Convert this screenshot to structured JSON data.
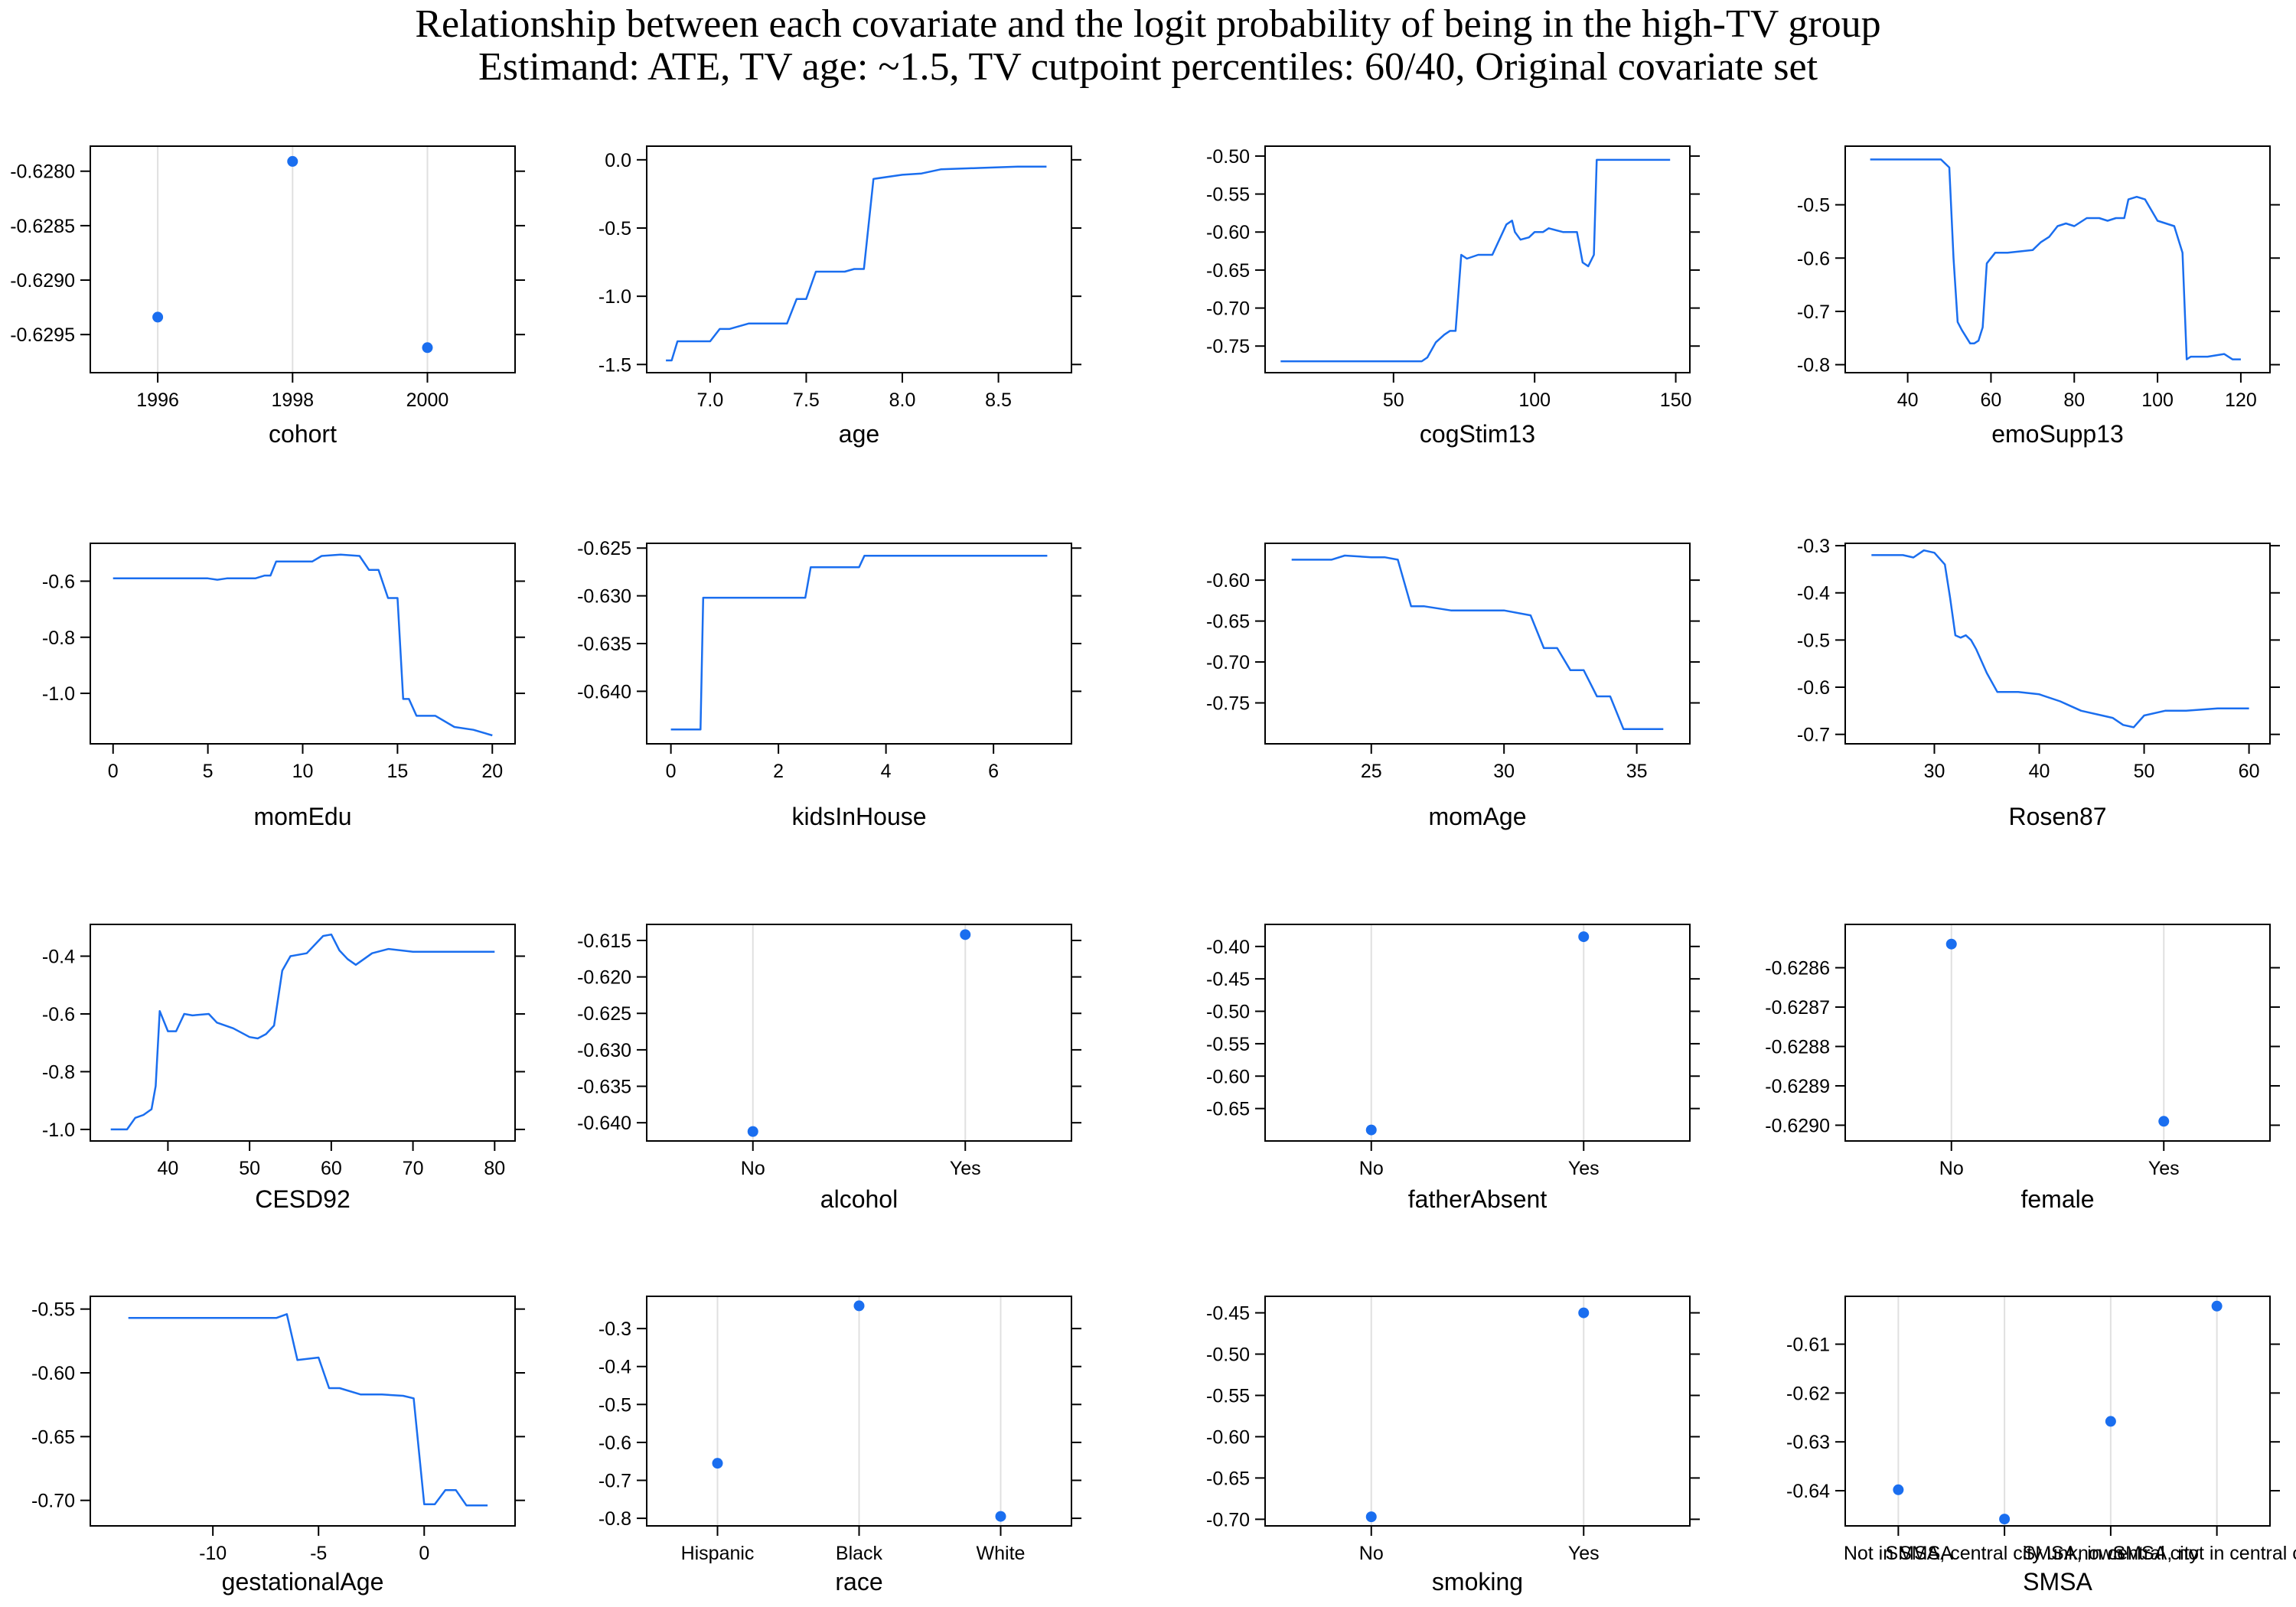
{
  "title_line1": "Relationship between each covariate and the logit probability of being in the high-TV group",
  "title_line2": "Estimand: ATE, TV age: ~1.5, TV cutpoint percentiles: 60/40, Original covariate set",
  "colors": {
    "series": "#1a6eef",
    "grid": "#e0e0e0",
    "frame": "#000000"
  },
  "chart_data": [
    {
      "name": "cohort",
      "type": "scatter",
      "xlabel": "cohort",
      "x": [
        1996,
        1998,
        2000
      ],
      "y": [
        -0.62934,
        -0.62791,
        -0.62962
      ],
      "xlim": [
        1995,
        2001.3
      ],
      "ylim": [
        -0.62985,
        -0.62777
      ],
      "xticks": [
        1996,
        1998,
        2000
      ],
      "yticks": [
        -0.628,
        -0.6285,
        -0.629,
        -0.6295
      ],
      "ytick_labels": [
        "-0.6280",
        "-0.6285",
        "-0.6290",
        "-0.6295"
      ],
      "xgrid": [
        1996,
        1998,
        2000
      ]
    },
    {
      "name": "age",
      "type": "line",
      "xlabel": "age",
      "x": [
        6.77,
        6.8,
        6.83,
        6.9,
        7.0,
        7.05,
        7.1,
        7.2,
        7.3,
        7.4,
        7.45,
        7.5,
        7.55,
        7.7,
        7.75,
        7.8,
        7.85,
        8.0,
        8.1,
        8.2,
        8.4,
        8.6,
        8.75
      ],
      "y": [
        -1.47,
        -1.47,
        -1.33,
        -1.33,
        -1.33,
        -1.24,
        -1.24,
        -1.2,
        -1.2,
        -1.2,
        -1.02,
        -1.02,
        -0.82,
        -0.82,
        -0.8,
        -0.8,
        -0.14,
        -0.11,
        -0.1,
        -0.07,
        -0.06,
        -0.05,
        -0.05
      ],
      "xlim": [
        6.67,
        8.88
      ],
      "ylim": [
        -1.56,
        0.1
      ],
      "xticks": [
        7.0,
        7.5,
        8.0,
        8.5
      ],
      "xtick_labels": [
        "7.0",
        "7.5",
        "8.0",
        "8.5"
      ],
      "yticks": [
        0.0,
        -0.5,
        -1.0,
        -1.5
      ],
      "ytick_labels": [
        "0.0",
        "-0.5",
        "-1.0",
        "-1.5"
      ]
    },
    {
      "name": "cogStim13",
      "type": "line",
      "xlabel": "cogStim13",
      "x": [
        10,
        40,
        60,
        62,
        65,
        68,
        70,
        72,
        74,
        76,
        80,
        85,
        90,
        92,
        93,
        95,
        98,
        100,
        103,
        105,
        110,
        115,
        117,
        119,
        121,
        122,
        125,
        135,
        148
      ],
      "y": [
        -0.77,
        -0.77,
        -0.77,
        -0.765,
        -0.745,
        -0.735,
        -0.73,
        -0.73,
        -0.63,
        -0.635,
        -0.63,
        -0.63,
        -0.59,
        -0.585,
        -0.6,
        -0.61,
        -0.607,
        -0.6,
        -0.6,
        -0.595,
        -0.6,
        -0.6,
        -0.64,
        -0.645,
        -0.63,
        -0.505,
        -0.505,
        -0.505,
        -0.505
      ],
      "xlim": [
        4.5,
        155
      ],
      "ylim": [
        -0.785,
        -0.487
      ],
      "xticks": [
        50,
        100,
        150
      ],
      "yticks": [
        -0.5,
        -0.55,
        -0.6,
        -0.65,
        -0.7,
        -0.75
      ],
      "ytick_labels": [
        "-0.50",
        "-0.55",
        "-0.60",
        "-0.65",
        "-0.70",
        "-0.75"
      ]
    },
    {
      "name": "emoSupp13",
      "type": "line",
      "xlabel": "emoSupp13",
      "x": [
        31,
        40,
        48,
        50,
        51,
        52,
        53,
        55,
        56,
        57,
        58,
        59,
        60,
        61,
        64,
        70,
        72,
        74,
        76,
        78,
        80,
        83,
        86,
        88,
        90,
        92,
        93,
        95,
        97,
        100,
        102,
        104,
        106,
        107,
        108,
        112,
        116,
        118,
        120
      ],
      "y": [
        -0.415,
        -0.415,
        -0.415,
        -0.43,
        -0.6,
        -0.72,
        -0.735,
        -0.76,
        -0.76,
        -0.755,
        -0.73,
        -0.61,
        -0.6,
        -0.59,
        -0.59,
        -0.585,
        -0.57,
        -0.56,
        -0.54,
        -0.535,
        -0.54,
        -0.525,
        -0.525,
        -0.53,
        -0.525,
        -0.525,
        -0.49,
        -0.485,
        -0.49,
        -0.53,
        -0.535,
        -0.54,
        -0.59,
        -0.79,
        -0.785,
        -0.785,
        -0.78,
        -0.79,
        -0.79
      ],
      "xlim": [
        25,
        127
      ],
      "ylim": [
        -0.815,
        -0.39
      ],
      "xticks": [
        40,
        60,
        80,
        100,
        120
      ],
      "yticks": [
        -0.5,
        -0.6,
        -0.7,
        -0.8
      ]
    },
    {
      "name": "momEdu",
      "type": "line",
      "xlabel": "momEdu",
      "x": [
        0,
        3,
        5,
        5.5,
        6,
        7.5,
        8,
        8.3,
        8.6,
        9,
        10.5,
        11,
        12,
        13,
        13.5,
        14,
        14.5,
        15,
        15.3,
        15.6,
        16,
        17,
        18,
        19,
        20
      ],
      "y": [
        -0.59,
        -0.59,
        -0.59,
        -0.595,
        -0.59,
        -0.59,
        -0.58,
        -0.58,
        -0.53,
        -0.53,
        -0.53,
        -0.51,
        -0.505,
        -0.51,
        -0.56,
        -0.56,
        -0.66,
        -0.66,
        -1.02,
        -1.02,
        -1.08,
        -1.08,
        -1.12,
        -1.13,
        -1.15
      ],
      "xlim": [
        -1.2,
        21.2
      ],
      "ylim": [
        -1.18,
        -0.465
      ],
      "xticks": [
        0,
        5,
        10,
        15,
        20
      ],
      "yticks": [
        -0.6,
        -0.8,
        -1.0
      ],
      "ytick_labels": [
        "-0.6",
        "-0.8",
        "-1.0"
      ]
    },
    {
      "name": "kidsInHouse",
      "type": "line",
      "xlabel": "kidsInHouse",
      "x": [
        0,
        0.55,
        0.6,
        1,
        1.5,
        2,
        2.5,
        2.6,
        3,
        3.5,
        3.6,
        5,
        6,
        7
      ],
      "y": [
        -0.644,
        -0.644,
        -0.6302,
        -0.6302,
        -0.6302,
        -0.6302,
        -0.6302,
        -0.627,
        -0.627,
        -0.627,
        -0.6258,
        -0.6258,
        -0.6258,
        -0.6258
      ],
      "xlim": [
        -0.45,
        7.45
      ],
      "ylim": [
        -0.6455,
        -0.6245
      ],
      "xticks": [
        0,
        2,
        4,
        6
      ],
      "yticks": [
        -0.625,
        -0.63,
        -0.635,
        -0.64
      ],
      "ytick_labels": [
        "-0.625",
        "-0.630",
        "-0.635",
        "-0.640"
      ]
    },
    {
      "name": "momAge",
      "type": "line",
      "xlabel": "momAge",
      "x": [
        22,
        23,
        23.5,
        24,
        25,
        25.5,
        26,
        26.5,
        27,
        28,
        29,
        30,
        31,
        31.5,
        32,
        32.5,
        33,
        33.5,
        34,
        34.5,
        35,
        36
      ],
      "y": [
        -0.575,
        -0.575,
        -0.575,
        -0.57,
        -0.572,
        -0.572,
        -0.575,
        -0.632,
        -0.632,
        -0.637,
        -0.637,
        -0.637,
        -0.643,
        -0.683,
        -0.683,
        -0.71,
        -0.71,
        -0.742,
        -0.742,
        -0.782,
        -0.782,
        -0.782
      ],
      "xlim": [
        21,
        37
      ],
      "ylim": [
        -0.8,
        -0.555
      ],
      "xticks": [
        25,
        30,
        35
      ],
      "yticks": [
        -0.6,
        -0.65,
        -0.7,
        -0.75
      ],
      "ytick_labels": [
        "-0.60",
        "-0.65",
        "-0.70",
        "-0.75"
      ]
    },
    {
      "name": "Rosen87",
      "type": "line",
      "xlabel": "Rosen87",
      "x": [
        24,
        27,
        28,
        29,
        30,
        31,
        31.5,
        32,
        32.5,
        33,
        33.5,
        34,
        35,
        36,
        37,
        38,
        40,
        42,
        43,
        44,
        46,
        47,
        48,
        49,
        50,
        52,
        54,
        57,
        58,
        60
      ],
      "y": [
        -0.32,
        -0.32,
        -0.325,
        -0.31,
        -0.315,
        -0.34,
        -0.41,
        -0.49,
        -0.495,
        -0.49,
        -0.5,
        -0.52,
        -0.57,
        -0.61,
        -0.61,
        -0.61,
        -0.615,
        -0.63,
        -0.64,
        -0.65,
        -0.66,
        -0.665,
        -0.68,
        -0.685,
        -0.66,
        -0.65,
        -0.65,
        -0.645,
        -0.645,
        -0.645
      ],
      "xlim": [
        21.5,
        62
      ],
      "ylim": [
        -0.72,
        -0.295
      ],
      "xticks": [
        30,
        40,
        50,
        60
      ],
      "yticks": [
        -0.3,
        -0.4,
        -0.5,
        -0.6,
        -0.7
      ]
    },
    {
      "name": "CESD92",
      "type": "line",
      "xlabel": "CESD92",
      "x": [
        33,
        35,
        36,
        37,
        38,
        38.5,
        39,
        40,
        41,
        42,
        43,
        45,
        46,
        48,
        50,
        51,
        52,
        53,
        54,
        55,
        57,
        58,
        59,
        60,
        61,
        62,
        63,
        64,
        65,
        67,
        70,
        75,
        80
      ],
      "y": [
        -1.0,
        -1.0,
        -0.96,
        -0.95,
        -0.93,
        -0.85,
        -0.59,
        -0.66,
        -0.66,
        -0.6,
        -0.605,
        -0.6,
        -0.63,
        -0.65,
        -0.68,
        -0.685,
        -0.67,
        -0.64,
        -0.45,
        -0.4,
        -0.39,
        -0.36,
        -0.33,
        -0.325,
        -0.38,
        -0.41,
        -0.43,
        -0.41,
        -0.39,
        -0.375,
        -0.385,
        -0.385,
        -0.385
      ],
      "xlim": [
        30.5,
        82.5
      ],
      "ylim": [
        -1.04,
        -0.29
      ],
      "xticks": [
        40,
        50,
        60,
        70,
        80
      ],
      "yticks": [
        -0.4,
        -0.6,
        -0.8,
        -1.0
      ],
      "ytick_labels": [
        "-0.4",
        "-0.6",
        "-0.8",
        "-1.0"
      ]
    },
    {
      "name": "alcohol",
      "type": "scatter",
      "xlabel": "alcohol",
      "categories": [
        "No",
        "Yes"
      ],
      "y": [
        -0.6412,
        -0.6142
      ],
      "ylim": [
        -0.6425,
        -0.6128
      ],
      "yticks": [
        -0.615,
        -0.62,
        -0.625,
        -0.63,
        -0.635,
        -0.64
      ],
      "ytick_labels": [
        "-0.615",
        "-0.620",
        "-0.625",
        "-0.630",
        "-0.635",
        "-0.640"
      ],
      "yaxis_side": "right"
    },
    {
      "name": "fatherAbsent",
      "type": "scatter",
      "xlabel": "fatherAbsent",
      "categories": [
        "No",
        "Yes"
      ],
      "y": [
        -0.683,
        -0.385
      ],
      "ylim": [
        -0.7,
        -0.366
      ],
      "yticks": [
        -0.4,
        -0.45,
        -0.5,
        -0.55,
        -0.6,
        -0.65
      ],
      "ytick_labels": [
        "-0.40",
        "-0.45",
        "-0.50",
        "-0.55",
        "-0.60",
        "-0.65"
      ],
      "yaxis_side": "left"
    },
    {
      "name": "female",
      "type": "scatter",
      "xlabel": "female",
      "categories": [
        "No",
        "Yes"
      ],
      "y": [
        -0.62854,
        -0.62899
      ],
      "ylim": [
        -0.62904,
        -0.62849
      ],
      "yticks": [
        -0.6286,
        -0.6287,
        -0.6288,
        -0.6289,
        -0.629
      ],
      "ytick_labels": [
        "-0.6286",
        "-0.6287",
        "-0.6288",
        "-0.6289",
        "-0.6290"
      ],
      "yaxis_side": "left"
    },
    {
      "name": "gestationalAge",
      "type": "line",
      "xlabel": "gestationalAge",
      "x": [
        -14,
        -10,
        -8,
        -7,
        -6.5,
        -6,
        -5,
        -4.5,
        -4,
        -3,
        -2,
        -1,
        -0.5,
        0,
        0.5,
        1,
        1.5,
        2,
        2.5,
        3
      ],
      "y": [
        -0.557,
        -0.557,
        -0.557,
        -0.557,
        -0.554,
        -0.59,
        -0.588,
        -0.612,
        -0.612,
        -0.617,
        -0.617,
        -0.618,
        -0.62,
        -0.703,
        -0.703,
        -0.692,
        -0.692,
        -0.704,
        -0.704,
        -0.704
      ],
      "xlim": [
        -15.8,
        4.3
      ],
      "ylim": [
        -0.72,
        -0.54
      ],
      "xticks": [
        -10,
        -5,
        0
      ],
      "yticks": [
        -0.55,
        -0.6,
        -0.65,
        -0.7
      ],
      "ytick_labels": [
        "-0.55",
        "-0.60",
        "-0.65",
        "-0.70"
      ]
    },
    {
      "name": "race",
      "type": "scatter",
      "xlabel": "race",
      "categories": [
        "Hispanic",
        "Black",
        "White"
      ],
      "y": [
        -0.655,
        -0.24,
        -0.795
      ],
      "ylim": [
        -0.82,
        -0.215
      ],
      "yticks": [
        -0.3,
        -0.4,
        -0.5,
        -0.6,
        -0.7,
        -0.8
      ],
      "yaxis_side": "right"
    },
    {
      "name": "smoking",
      "type": "scatter",
      "xlabel": "smoking",
      "categories": [
        "No",
        "Yes"
      ],
      "y": [
        -0.697,
        -0.45
      ],
      "ylim": [
        -0.708,
        -0.43
      ],
      "yticks": [
        -0.45,
        -0.5,
        -0.55,
        -0.6,
        -0.65,
        -0.7
      ],
      "ytick_labels": [
        "-0.45",
        "-0.50",
        "-0.55",
        "-0.60",
        "-0.65",
        "-0.70"
      ],
      "yaxis_side": "left"
    },
    {
      "name": "SMSA",
      "type": "scatter",
      "xlabel": "SMSA",
      "categories": [
        "Not in SMSA",
        "SMSA, central city unknown",
        "SMSA, in central city",
        "SMSA, not in central city"
      ],
      "y": [
        -0.6398,
        -0.6458,
        -0.6258,
        -0.6022
      ],
      "ylim": [
        -0.6472,
        -0.6002
      ],
      "yticks": [
        -0.61,
        -0.62,
        -0.63,
        -0.64
      ],
      "yaxis_side": "left"
    }
  ]
}
